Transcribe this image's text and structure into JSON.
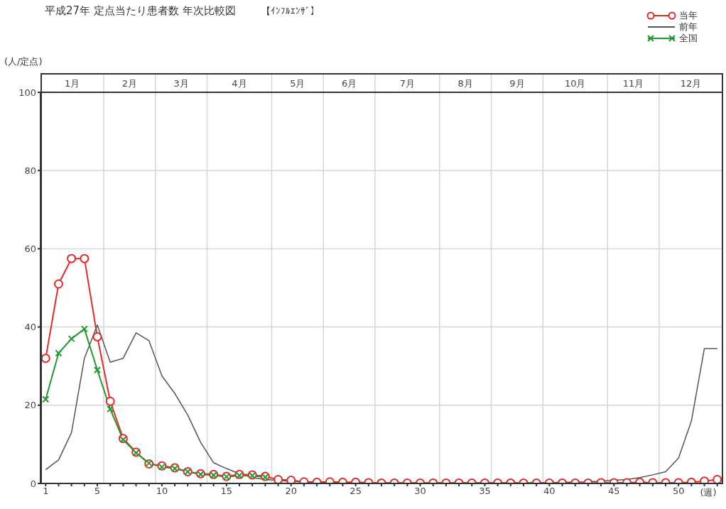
{
  "chart_data": {
    "type": "line",
    "title": "平成27年 定点当たり患者数 年次比較図",
    "subtitle": "【ｲﾝﾌﾙｴﾝｻﾞ】",
    "ylabel": "(人/定点)",
    "xlabel": "(週)",
    "x": [
      1,
      2,
      3,
      4,
      5,
      6,
      7,
      8,
      9,
      10,
      11,
      12,
      13,
      14,
      15,
      16,
      17,
      18,
      19,
      20,
      21,
      22,
      23,
      24,
      25,
      26,
      27,
      28,
      29,
      30,
      31,
      32,
      33,
      34,
      35,
      36,
      37,
      38,
      39,
      40,
      41,
      42,
      43,
      44,
      45,
      46,
      47,
      48,
      49,
      50,
      51,
      52,
      53
    ],
    "series": [
      {
        "name": "当年",
        "color": "#e52a2a",
        "marker": "circle",
        "values": [
          32,
          51,
          57.5,
          57.5,
          37.5,
          21,
          11.5,
          8,
          5,
          4.5,
          4,
          3,
          2.5,
          2.3,
          1.8,
          2.3,
          2.2,
          1.8,
          1,
          0.8,
          0.4,
          0.3,
          0.4,
          0.3,
          0.3,
          0.2,
          0.1,
          0.1,
          0.1,
          0.1,
          0.1,
          0.1,
          0.1,
          0.1,
          0.1,
          0.1,
          0.1,
          0.1,
          0.1,
          0.1,
          0.1,
          0.1,
          0.1,
          0.2,
          0.2,
          0.2,
          0.3,
          0.2,
          0.2,
          0.2,
          0.3,
          0.6,
          1.0
        ]
      },
      {
        "name": "前年",
        "color": "#555555",
        "marker": "none",
        "values": [
          3.5,
          6,
          13,
          32,
          40.5,
          31,
          32,
          38.5,
          36.5,
          27.5,
          23,
          17.5,
          10.5,
          5.3,
          3.8,
          2.5,
          1.5,
          1,
          0.8,
          0.5,
          0.4,
          0.3,
          0.3,
          0.2,
          0.2,
          0.2,
          0.2,
          0.2,
          0.2,
          0.2,
          0.2,
          0.2,
          0.2,
          0.2,
          0.2,
          0.2,
          0.2,
          0.2,
          0.2,
          0.2,
          0.3,
          0.3,
          0.4,
          0.6,
          0.8,
          1,
          1.5,
          2.2,
          3,
          6.5,
          16,
          34.5,
          34.5
        ]
      },
      {
        "name": "全国",
        "color": "#1e9a2e",
        "marker": "cross",
        "x": [
          1,
          2,
          3,
          4,
          5,
          6,
          7,
          8,
          9,
          10,
          11,
          12,
          13,
          14,
          15,
          16,
          17,
          18
        ],
        "values": [
          21.5,
          33.3,
          37,
          39.5,
          29,
          19,
          11.2,
          7.8,
          5.2,
          4.2,
          3.8,
          3,
          2.3,
          2.1,
          1.7,
          2,
          2,
          1.6
        ]
      }
    ],
    "xlim": [
      0.6,
      53.4
    ],
    "xticks": [
      1,
      {
        "value": 2,
        "label": null
      },
      {
        "value": 3,
        "label": null
      },
      {
        "value": 4,
        "label": null
      },
      5,
      {
        "value": 6,
        "label": null
      },
      {
        "value": 7,
        "label": null
      },
      {
        "value": 8,
        "label": null
      },
      {
        "value": 9,
        "label": null
      },
      10,
      {
        "value": 11,
        "label": null
      },
      {
        "value": 12,
        "label": null
      },
      {
        "value": 13,
        "label": null
      },
      {
        "value": 14,
        "label": null
      },
      15,
      {
        "value": 16,
        "label": null
      },
      {
        "value": 17,
        "label": null
      },
      {
        "value": 18,
        "label": null
      },
      {
        "value": 19,
        "label": null
      },
      20,
      {
        "value": 21,
        "label": null
      },
      {
        "value": 22,
        "label": null
      },
      {
        "value": 23,
        "label": null
      },
      {
        "value": 24,
        "label": null
      },
      25,
      {
        "value": 26,
        "label": null
      },
      {
        "value": 27,
        "label": null
      },
      {
        "value": 28,
        "label": null
      },
      {
        "value": 29,
        "label": null
      },
      30,
      {
        "value": 31,
        "label": null
      },
      {
        "value": 32,
        "label": null
      },
      {
        "value": 33,
        "label": null
      },
      {
        "value": 34,
        "label": null
      },
      35,
      {
        "value": 36,
        "label": null
      },
      {
        "value": 37,
        "label": null
      },
      {
        "value": 38,
        "label": null
      },
      {
        "value": 39,
        "label": null
      },
      40,
      {
        "value": 41,
        "label": null
      },
      {
        "value": 42,
        "label": null
      },
      {
        "value": 43,
        "label": null
      },
      {
        "value": 44,
        "label": null
      },
      45,
      {
        "value": 46,
        "label": null
      },
      {
        "value": 47,
        "label": null
      },
      {
        "value": 48,
        "label": null
      },
      {
        "value": 49,
        "label": null
      },
      50,
      {
        "value": 51,
        "label": null
      },
      {
        "value": 52,
        "label": null
      },
      {
        "value": 53,
        "label": null
      }
    ],
    "ref_lines": [
      {
        "axis": "x",
        "value": 5.5,
        "color": "#d6d6d6"
      },
      {
        "axis": "x",
        "value": 9.5,
        "color": "#d6d6d6"
      },
      {
        "axis": "x",
        "value": 13.5,
        "color": "#d6d6d6"
      },
      {
        "axis": "x",
        "value": 18.5,
        "color": "#d6d6d6"
      },
      {
        "axis": "x",
        "value": 22.5,
        "color": "#d6d6d6"
      },
      {
        "axis": "x",
        "value": 26.5,
        "color": "#d6d6d6"
      },
      {
        "axis": "x",
        "value": 31.5,
        "color": "#d6d6d6"
      },
      {
        "axis": "x",
        "value": 35.5,
        "color": "#d6d6d6"
      },
      {
        "axis": "x",
        "value": 39.5,
        "color": "#d6d6d6"
      },
      {
        "axis": "x",
        "value": 44.5,
        "color": "#d6d6d6"
      },
      {
        "axis": "x",
        "value": 48.5,
        "color": "#d6d6d6"
      }
    ],
    "annotations": [
      "1月",
      "2月",
      "3月",
      "4月",
      "5月",
      "6月",
      "7月",
      "8月",
      "9月",
      "10月",
      "11月",
      "12月"
    ],
    "ylim": [
      0,
      100
    ],
    "yticks": [
      0,
      20,
      40,
      60,
      80,
      100
    ],
    "grid": "y",
    "legend": "top right",
    "line_style": "solid"
  }
}
